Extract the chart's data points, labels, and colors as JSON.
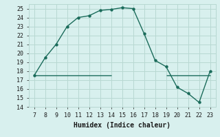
{
  "x": [
    7,
    8,
    9,
    10,
    11,
    12,
    13,
    14,
    15,
    16,
    17,
    18,
    19,
    20,
    21,
    22,
    23
  ],
  "y": [
    17.5,
    19.5,
    21.0,
    23.0,
    24.0,
    24.2,
    24.8,
    24.9,
    25.1,
    25.0,
    22.2,
    19.2,
    18.5,
    16.2,
    15.5,
    14.5,
    18.0
  ],
  "hline_y": 17.5,
  "hline_x_start": 7,
  "hline_x_end": 14,
  "hline2_y": 17.5,
  "hline2_x_start": 19,
  "hline2_x_end": 23,
  "line_color": "#1a6b5a",
  "bg_color": "#d8f0ee",
  "grid_color": "#b8d8d2",
  "xlabel": "Humidex (Indice chaleur)",
  "xlim": [
    6.5,
    23.5
  ],
  "ylim": [
    14,
    25.5
  ],
  "xticks": [
    7,
    8,
    9,
    10,
    11,
    12,
    13,
    14,
    15,
    16,
    17,
    18,
    19,
    20,
    21,
    22,
    23
  ],
  "yticks": [
    14,
    15,
    16,
    17,
    18,
    19,
    20,
    21,
    22,
    23,
    24,
    25
  ],
  "xlabel_fontsize": 7,
  "tick_fontsize": 6
}
